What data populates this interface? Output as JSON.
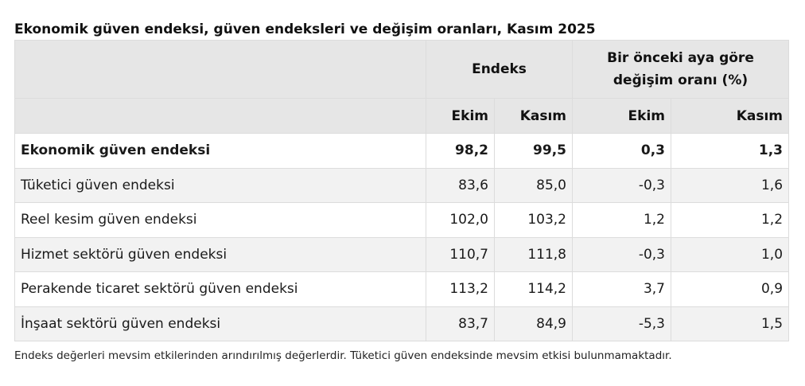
{
  "title": "Ekonomik güven endeksi, güven endeksleri ve değişim oranları, Kasım 2025",
  "table": {
    "group_headers": {
      "index": "Endeks",
      "change": "Bir önceki aya göre değişim oranı (%)"
    },
    "sub_headers": [
      "Ekim",
      "Kasım",
      "Ekim",
      "Kasım"
    ],
    "rows": [
      {
        "label": "Ekonomik güven endeksi",
        "values": [
          "98,2",
          "99,5",
          "0,3",
          "1,3"
        ],
        "bold": true
      },
      {
        "label": "Tüketici güven endeksi",
        "values": [
          "83,6",
          "85,0",
          "-0,3",
          "1,6"
        ]
      },
      {
        "label": "Reel kesim güven endeksi",
        "values": [
          "102,0",
          "103,2",
          "1,2",
          "1,2"
        ]
      },
      {
        "label": "Hizmet sektörü güven endeksi",
        "values": [
          "110,7",
          "111,8",
          "-0,3",
          "1,0"
        ]
      },
      {
        "label": "Perakende ticaret sektörü güven endeksi",
        "values": [
          "113,2",
          "114,2",
          "3,7",
          "0,9"
        ]
      },
      {
        "label": "İnşaat sektörü güven endeksi",
        "values": [
          "83,7",
          "84,9",
          "-5,3",
          "1,5"
        ]
      }
    ]
  },
  "footnote": "Endeks değerleri mevsim etkilerinden arındırılmış değerlerdir. Tüketici güven endeksinde mevsim etkisi bulunmamaktadır."
}
